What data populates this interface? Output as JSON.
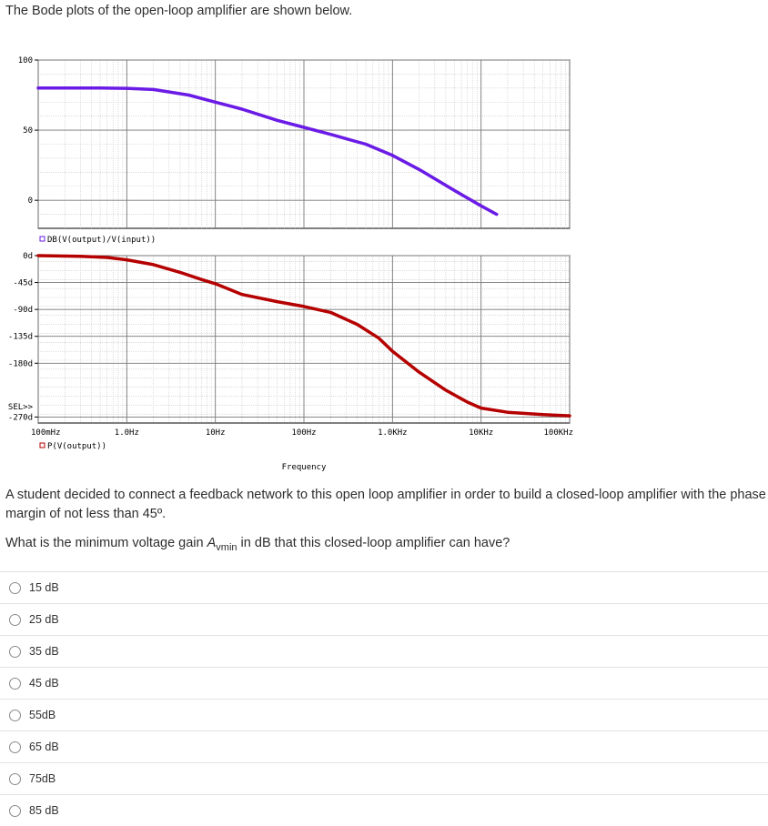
{
  "intro": "The Bode plots of the open-loop amplifier are shown below.",
  "chart_data": [
    {
      "type": "line",
      "panel": "magnitude",
      "x_scale": "log",
      "xlim": [
        0.1,
        100000
      ],
      "ylim": [
        -20,
        100
      ],
      "yticks": [
        {
          "value": 100,
          "label": "100"
        },
        {
          "value": 50,
          "label": "50"
        },
        {
          "value": 0,
          "label": "0"
        }
      ],
      "grid": true,
      "legend": "DB(V(output)/V(input))",
      "series": [
        {
          "color": "#6a1be6",
          "x": [
            0.1,
            0.5,
            1,
            2,
            5,
            10,
            20,
            50,
            100,
            200,
            500,
            1000,
            2000,
            5000,
            10000,
            15000
          ],
          "y": [
            80,
            80,
            79.8,
            79,
            75,
            70,
            65,
            57,
            52,
            47,
            40,
            32,
            22,
            7,
            -4,
            -10
          ]
        }
      ]
    },
    {
      "type": "line",
      "panel": "phase",
      "x_scale": "log",
      "xlim": [
        0.1,
        100000
      ],
      "ylim": [
        -280,
        0
      ],
      "yticks": [
        {
          "value": 0,
          "label": "0d"
        },
        {
          "value": -45,
          "label": "-45d"
        },
        {
          "value": -90,
          "label": "-90d"
        },
        {
          "value": -135,
          "label": "-135d"
        },
        {
          "value": -180,
          "label": "-180d"
        },
        {
          "value": -270,
          "label": "-270d"
        }
      ],
      "sel_label": "SEL>>",
      "grid": true,
      "legend": "P(V(output))",
      "xticks": [
        "100mHz",
        "1.0Hz",
        "10Hz",
        "100Hz",
        "1.0KHz",
        "10KHz",
        "100KHz"
      ],
      "xlabel": "Frequency",
      "series": [
        {
          "color": "#b50000",
          "x": [
            0.1,
            0.3,
            0.6,
            1,
            2,
            4,
            7,
            10,
            20,
            50,
            100,
            200,
            400,
            700,
            1000,
            2000,
            4000,
            7000,
            10000,
            20000,
            50000,
            100000
          ],
          "y": [
            0,
            -1,
            -3,
            -7,
            -15,
            -28,
            -40,
            -47,
            -65,
            -77,
            -85,
            -95,
            -115,
            -138,
            -160,
            -195,
            -225,
            -245,
            -255,
            -262,
            -266,
            -268
          ]
        }
      ]
    }
  ],
  "question": {
    "line1": "A student decided to connect a feedback network to this open loop amplifier in order to build a closed-loop amplifier with the phase margin of not less than 45º.",
    "line2_prefix": "What is the minimum voltage gain ",
    "symbol": "A",
    "subscript": "vmin",
    "line2_suffix": " in dB that this closed-loop amplifier can have?"
  },
  "options": [
    "15 dB",
    "25 dB",
    "35 dB",
    "45 dB",
    "55dB",
    "65 dB",
    "75dB",
    "85 dB"
  ]
}
